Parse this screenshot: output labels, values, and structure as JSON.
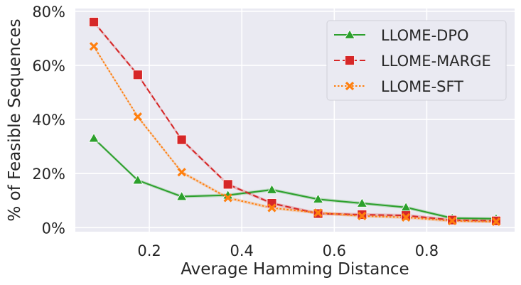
{
  "chart_data": {
    "type": "line",
    "title": "",
    "xlabel": "Average Hamming Distance",
    "ylabel": "% of Feasible Sequences",
    "xlim": [
      0.04,
      0.99
    ],
    "ylim": [
      -1.5,
      81
    ],
    "xticks": [
      0.2,
      0.4,
      0.6,
      0.8
    ],
    "xtick_labels": [
      "0.2",
      "0.4",
      "0.6",
      "0.8"
    ],
    "yticks": [
      0,
      20,
      40,
      60,
      80
    ],
    "ytick_labels": [
      "0%",
      "20%",
      "40%",
      "60%",
      "80%"
    ],
    "grid": true,
    "legend_position": "upper right",
    "series": [
      {
        "name": "LLOME-DPO",
        "color": "#2ca02c",
        "marker": "triangle",
        "dash": "solid",
        "x": [
          0.08,
          0.175,
          0.27,
          0.37,
          0.465,
          0.565,
          0.66,
          0.755,
          0.855,
          0.95
        ],
        "y": [
          33,
          17.5,
          11.5,
          12,
          14,
          10.5,
          9,
          7.5,
          3.5,
          3.3
        ]
      },
      {
        "name": "LLOME-MARGE",
        "color": "#d62728",
        "marker": "square",
        "dash": "dashed",
        "x": [
          0.08,
          0.175,
          0.27,
          0.37,
          0.465,
          0.565,
          0.66,
          0.755,
          0.855,
          0.95
        ],
        "y": [
          76,
          56.5,
          32.5,
          16,
          9,
          5.2,
          4.8,
          4.5,
          2.8,
          2.5
        ]
      },
      {
        "name": "LLOME-SFT",
        "color": "#ff7f0e",
        "marker": "x",
        "dash": "dotted",
        "x": [
          0.08,
          0.175,
          0.27,
          0.37,
          0.465,
          0.565,
          0.66,
          0.755,
          0.855,
          0.95
        ],
        "y": [
          67,
          41,
          20.5,
          11,
          7.3,
          5.5,
          4.3,
          3.8,
          2.5,
          2.2
        ]
      }
    ]
  }
}
